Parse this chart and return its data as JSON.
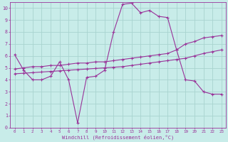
{
  "background_color": "#c8ece9",
  "grid_color": "#a8d4cf",
  "line_color": "#993399",
  "xlabel": "Windchill (Refroidissement éolien,°C)",
  "xlim": [
    -0.5,
    23.5
  ],
  "ylim": [
    0,
    10.5
  ],
  "xticks": [
    0,
    1,
    2,
    3,
    4,
    5,
    6,
    7,
    8,
    9,
    10,
    11,
    12,
    13,
    14,
    15,
    16,
    17,
    18,
    19,
    20,
    21,
    22,
    23
  ],
  "yticks": [
    0,
    1,
    2,
    3,
    4,
    5,
    6,
    7,
    8,
    9,
    10
  ],
  "line1_x": [
    0,
    1,
    2,
    3,
    4,
    5,
    6,
    7,
    8,
    9,
    10,
    11,
    12,
    13,
    14,
    15,
    16,
    17,
    18,
    19,
    20,
    21,
    22,
    23
  ],
  "line1_y": [
    6.1,
    4.8,
    4.0,
    4.0,
    4.3,
    5.5,
    4.0,
    0.4,
    4.2,
    4.3,
    4.8,
    8.0,
    10.3,
    10.4,
    9.6,
    9.8,
    9.3,
    9.2,
    6.5,
    4.0,
    3.9,
    3.0,
    2.8,
    2.8
  ],
  "line2_x": [
    0,
    1,
    2,
    3,
    4,
    5,
    6,
    7,
    8,
    9,
    10,
    11,
    12,
    13,
    14,
    15,
    16,
    17,
    18,
    19,
    20,
    21,
    22,
    23
  ],
  "line2_y": [
    4.9,
    5.0,
    5.1,
    5.1,
    5.2,
    5.2,
    5.3,
    5.4,
    5.4,
    5.5,
    5.5,
    5.6,
    5.7,
    5.8,
    5.9,
    6.0,
    6.1,
    6.2,
    6.5,
    7.0,
    7.2,
    7.5,
    7.6,
    7.7
  ],
  "line3_x": [
    0,
    1,
    2,
    3,
    4,
    5,
    6,
    7,
    8,
    9,
    10,
    11,
    12,
    13,
    14,
    15,
    16,
    17,
    18,
    19,
    20,
    21,
    22,
    23
  ],
  "line3_y": [
    4.5,
    4.55,
    4.6,
    4.65,
    4.7,
    4.75,
    4.8,
    4.85,
    4.9,
    4.95,
    5.0,
    5.05,
    5.1,
    5.2,
    5.3,
    5.4,
    5.5,
    5.6,
    5.7,
    5.8,
    6.0,
    6.2,
    6.35,
    6.5
  ]
}
